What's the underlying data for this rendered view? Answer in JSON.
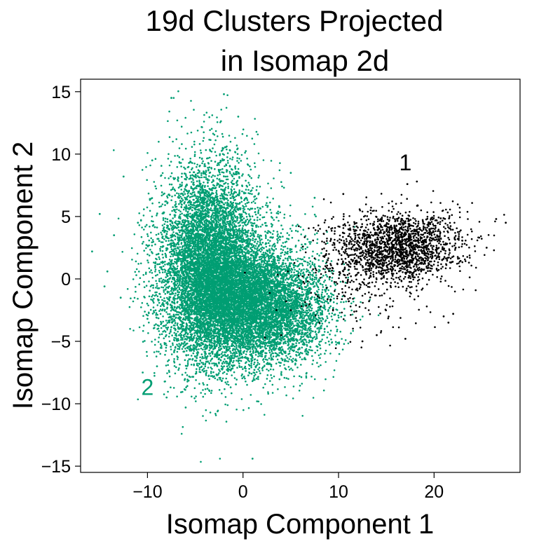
{
  "chart_data": {
    "type": "scatter",
    "title_lines": [
      "19d Clusters Projected",
      "in Isomap 2d"
    ],
    "xlabel": "Isomap Component 1",
    "ylabel": "Isomap Component 2",
    "xlim": [
      -17,
      29
    ],
    "ylim": [
      -15.5,
      16
    ],
    "x_ticks": [
      {
        "value": -10,
        "label": "−10"
      },
      {
        "value": 0,
        "label": "0"
      },
      {
        "value": 10,
        "label": "10"
      },
      {
        "value": 20,
        "label": "20"
      }
    ],
    "y_ticks": [
      {
        "value": 15,
        "label": "15"
      },
      {
        "value": 10,
        "label": "10"
      },
      {
        "value": 5,
        "label": "5"
      },
      {
        "value": 0,
        "label": "0"
      },
      {
        "value": -5,
        "label": "−5"
      },
      {
        "value": -10,
        "label": "−10"
      },
      {
        "value": -15,
        "label": "−15"
      }
    ],
    "grid": false,
    "series": [
      {
        "name": "2",
        "color": "#009e73",
        "approx_count": 30000,
        "core": {
          "components": [
            {
              "cx": -3.5,
              "cy": 1.5,
              "sx": 2.6,
              "sy": 4.0,
              "weight": 0.45
            },
            {
              "cx": -1.0,
              "cy": -1.5,
              "sx": 3.5,
              "sy": 2.6,
              "weight": 0.35
            },
            {
              "cx": 3.5,
              "cy": -2.5,
              "sx": 3.0,
              "sy": 2.2,
              "weight": 0.2
            }
          ]
        },
        "outliers": [
          [
            -2,
            14.8
          ],
          [
            -7.5,
            14.5
          ],
          [
            -0.5,
            13
          ],
          [
            -15,
            5.2
          ],
          [
            -13.5,
            3.5
          ],
          [
            -14.2,
            0.6
          ],
          [
            -14.5,
            -0.6
          ],
          [
            -12.5,
            8.2
          ],
          [
            -10,
            -3.2
          ],
          [
            -9,
            -7
          ],
          [
            -6,
            -10.3
          ],
          [
            -8,
            -9.5
          ],
          [
            -10.5,
            -7.5
          ],
          [
            1,
            -14.4
          ],
          [
            -11,
            4.5
          ],
          [
            -9.5,
            9.5
          ],
          [
            -15.8,
            2.2
          ],
          [
            7.5,
            6.5
          ],
          [
            5,
            8.5
          ],
          [
            -12.8,
            -1.5
          ]
        ]
      },
      {
        "name": "1",
        "color": "#000000",
        "approx_count": 2000,
        "core": {
          "components": [
            {
              "cx": 16.5,
              "cy": 2.6,
              "sx": 3.3,
              "sy": 1.4,
              "weight": 0.8
            },
            {
              "cx": 12.5,
              "cy": 0.5,
              "sx": 3.0,
              "sy": 2.3,
              "weight": 0.2
            }
          ]
        },
        "outliers": [
          [
            17.2,
            7.6
          ],
          [
            18.2,
            7.8
          ],
          [
            26.5,
            4.8
          ],
          [
            27.5,
            4.5
          ],
          [
            25.5,
            2.5
          ],
          [
            21.5,
            -3.5
          ],
          [
            21,
            -3
          ],
          [
            22,
            -2.8
          ],
          [
            17,
            -4.8
          ],
          [
            14,
            -4.5
          ],
          [
            12.5,
            -5
          ],
          [
            10.5,
            6.8
          ],
          [
            0.2,
            0.5
          ],
          [
            2.3,
            -4.7
          ],
          [
            4,
            -4.5
          ],
          [
            3.5,
            -2.5
          ],
          [
            4.5,
            -1.8
          ],
          [
            5,
            -2.5
          ]
        ]
      }
    ],
    "annotations": [
      {
        "text": "1",
        "x": 17,
        "y": 8.7,
        "color": "#000000"
      },
      {
        "text": "2",
        "x": -10,
        "y": -9.3,
        "color": "#009e73"
      }
    ]
  }
}
